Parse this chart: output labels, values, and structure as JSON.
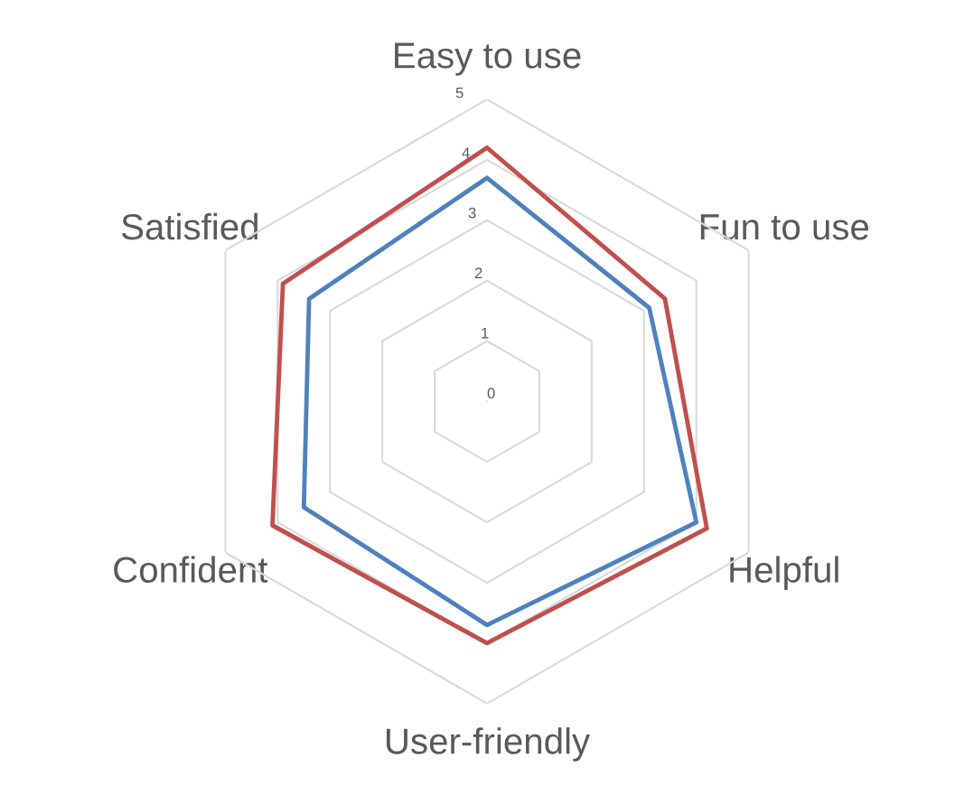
{
  "chart_data": {
    "type": "radar",
    "categories": [
      "Easy to use",
      "Fun to use",
      "Helpful",
      "User-friendly",
      "Confident",
      "Satisfied"
    ],
    "series": [
      {
        "color": "#4f81bd",
        "values": [
          3.7,
          3.1,
          4.0,
          3.7,
          3.5,
          3.4
        ]
      },
      {
        "color": "#c0504d",
        "values": [
          4.2,
          3.4,
          4.2,
          4.0,
          4.1,
          3.9
        ]
      }
    ],
    "ylim": [
      0,
      5
    ],
    "yticks": [
      0,
      1,
      2,
      3,
      4,
      5
    ],
    "grid": true,
    "marker": "none",
    "line_style": "solid"
  }
}
